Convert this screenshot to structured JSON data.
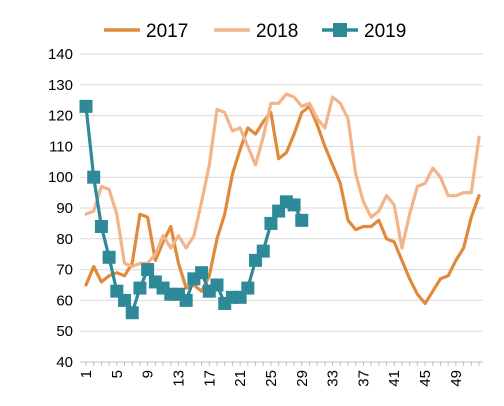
{
  "chart_data": {
    "type": "line",
    "title": "",
    "xlabel": "",
    "ylabel": "",
    "ylim": [
      40,
      140
    ],
    "yticks": [
      40,
      50,
      60,
      70,
      80,
      90,
      100,
      110,
      120,
      130,
      140
    ],
    "xlim": [
      1,
      52
    ],
    "xtick_labels": [
      "1",
      "5",
      "9",
      "13",
      "17",
      "21",
      "25",
      "29",
      "33",
      "37",
      "41",
      "45",
      "49"
    ],
    "xtick_step": 4,
    "grid": "horizontal",
    "legend": "top",
    "series": [
      {
        "name": "2017",
        "color": "#E08A3C",
        "marker": "none",
        "x": [
          1,
          2,
          3,
          4,
          5,
          6,
          7,
          8,
          9,
          10,
          11,
          12,
          13,
          14,
          15,
          16,
          17,
          18,
          19,
          20,
          21,
          22,
          23,
          24,
          25,
          26,
          27,
          28,
          29,
          30,
          31,
          32,
          33,
          34,
          35,
          36,
          37,
          38,
          39,
          40,
          41,
          42,
          43,
          44,
          45,
          46,
          47,
          48,
          49,
          50,
          51,
          52
        ],
        "values": [
          65,
          71,
          66,
          68,
          69,
          68,
          72,
          88,
          87,
          73,
          79,
          84,
          72,
          64,
          65,
          63,
          68,
          80,
          88,
          101,
          109,
          116,
          114,
          118,
          121,
          106,
          108,
          114,
          121,
          123,
          117,
          110,
          104,
          98,
          86,
          83,
          84,
          84,
          86,
          80,
          79,
          73,
          67,
          62,
          59,
          63,
          67,
          68,
          73,
          77,
          87,
          94
        ]
      },
      {
        "name": "2018",
        "color": "#F2B48A",
        "marker": "none",
        "x": [
          1,
          2,
          3,
          4,
          5,
          6,
          7,
          8,
          9,
          10,
          11,
          12,
          13,
          14,
          15,
          16,
          17,
          18,
          19,
          20,
          21,
          22,
          23,
          24,
          25,
          26,
          27,
          28,
          29,
          30,
          31,
          32,
          33,
          34,
          35,
          36,
          37,
          38,
          39,
          40,
          41,
          42,
          43,
          44,
          45,
          46,
          47,
          48,
          49,
          50,
          51,
          52
        ],
        "values": [
          88,
          89,
          97,
          96,
          88,
          72,
          71,
          72,
          72,
          75,
          81,
          77,
          81,
          77,
          81,
          92,
          104,
          122,
          121,
          115,
          116,
          110,
          104,
          113,
          124,
          124,
          127,
          126,
          123,
          124,
          119,
          116,
          126,
          124,
          119,
          101,
          92,
          87,
          89,
          94,
          91,
          77,
          88,
          97,
          98,
          103,
          100,
          94,
          94,
          95,
          95,
          113
        ]
      },
      {
        "name": "2019",
        "color": "#2E8A99",
        "marker": "square",
        "x": [
          1,
          2,
          3,
          4,
          5,
          6,
          7,
          8,
          9,
          10,
          11,
          12,
          13,
          14,
          15,
          16,
          17,
          18,
          19,
          20,
          21,
          22,
          23,
          24,
          25,
          26,
          27,
          28,
          29
        ],
        "values": [
          123,
          100,
          84,
          74,
          63,
          60,
          56,
          64,
          70,
          66,
          64,
          62,
          62,
          60,
          67,
          69,
          63,
          65,
          59,
          61,
          61,
          64,
          73,
          76,
          85,
          89,
          92,
          91,
          86
        ]
      }
    ]
  }
}
